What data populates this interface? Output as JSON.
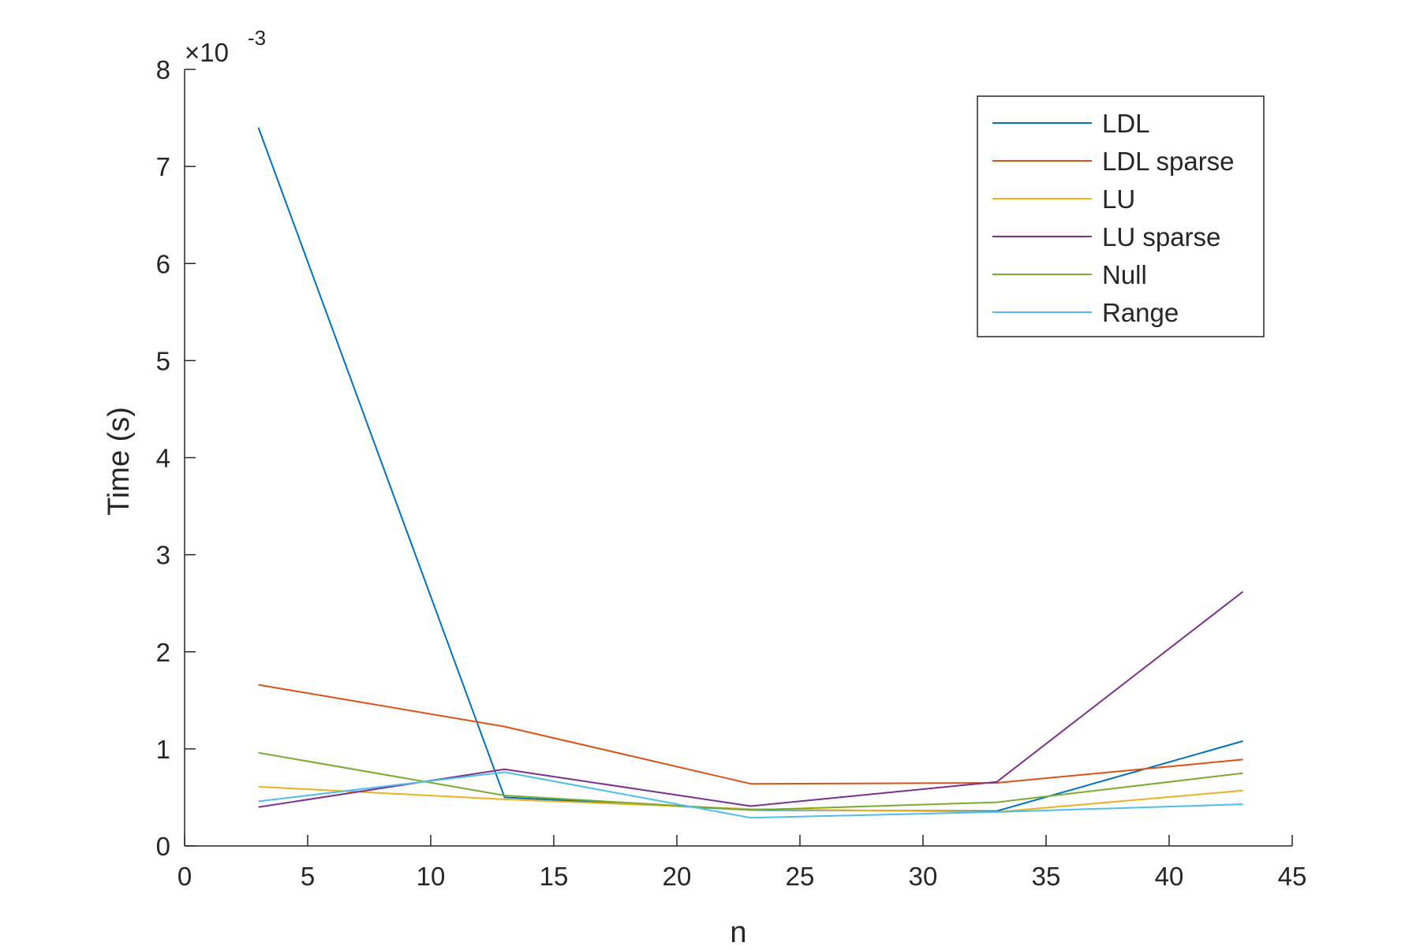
{
  "chart_data": {
    "type": "line",
    "title": "",
    "xlabel": "n",
    "ylabel": "Time (s)",
    "y_exponent_label": "×10",
    "y_exponent_power": "-3",
    "xlim": [
      0,
      45
    ],
    "ylim": [
      0,
      8
    ],
    "xticks": [
      0,
      5,
      10,
      15,
      20,
      25,
      30,
      35,
      40,
      45
    ],
    "xtick_labels": [
      "0",
      "5",
      "10",
      "15",
      "20",
      "25",
      "30",
      "35",
      "40",
      "45"
    ],
    "yticks": [
      0,
      1,
      2,
      3,
      4,
      5,
      6,
      7,
      8
    ],
    "ytick_labels": [
      "0",
      "1",
      "2",
      "3",
      "4",
      "5",
      "6",
      "7",
      "8"
    ],
    "y_scale_note": "values in units of 1e-3 s",
    "grid": false,
    "legend_position": "top-right",
    "x": [
      3,
      13,
      23,
      33,
      43
    ],
    "series": [
      {
        "name": "LDL",
        "color": "#0072BD",
        "values": [
          7.4,
          0.5,
          0.37,
          0.36,
          1.08
        ]
      },
      {
        "name": "LDL sparse",
        "color": "#D95319",
        "values": [
          1.66,
          1.23,
          0.64,
          0.65,
          0.89
        ]
      },
      {
        "name": "LU",
        "color": "#EDB120",
        "values": [
          0.61,
          0.48,
          0.38,
          0.35,
          0.57
        ]
      },
      {
        "name": "LU sparse",
        "color": "#7E2F8E",
        "values": [
          0.4,
          0.79,
          0.41,
          0.66,
          2.62
        ]
      },
      {
        "name": "Null",
        "color": "#77AC30",
        "values": [
          0.96,
          0.52,
          0.37,
          0.45,
          0.75
        ]
      },
      {
        "name": "Range",
        "color": "#4DBEEE",
        "values": [
          0.46,
          0.76,
          0.29,
          0.35,
          0.43
        ]
      }
    ]
  }
}
